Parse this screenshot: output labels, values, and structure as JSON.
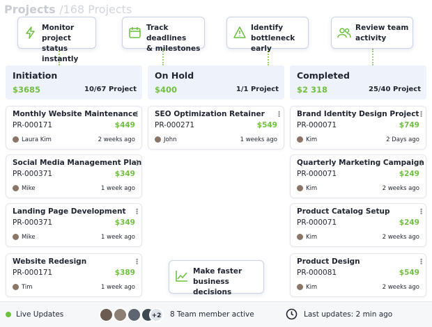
{
  "header": {
    "title": "Projects",
    "count": "/168 Projects"
  },
  "callouts": [
    {
      "lines": [
        "Monitor project",
        "status instantly"
      ]
    },
    {
      "lines": [
        "Track deadlines",
        "& milestones"
      ]
    },
    {
      "lines": [
        "Identify",
        "bottleneck early"
      ]
    },
    {
      "lines": [
        "Review team",
        "activity"
      ]
    },
    {
      "lines": [
        "Make faster",
        "business decisions"
      ]
    }
  ],
  "columns": [
    {
      "title": "Initiation",
      "amount": "$3685",
      "count": "10/67 Project",
      "cards": [
        {
          "title": "Monthly Website Maintenance",
          "id": "PR-000171",
          "price": "$449",
          "user": "Laura Kim",
          "time": "2 weeks ago"
        },
        {
          "title": "Social Media Management Plan",
          "id": "PR-000371",
          "price": "$349",
          "user": "Mike",
          "time": "1 week ago"
        },
        {
          "title": "Landing Page Development",
          "id": "PR-000371",
          "price": "$349",
          "user": "Mike",
          "time": "1 week ago"
        },
        {
          "title": "Website Redesign",
          "id": "PR-000171",
          "price": "$389",
          "user": "Tim",
          "time": "1 week ago"
        }
      ]
    },
    {
      "title": "On Hold",
      "amount": "$400",
      "count": "1/1 Project",
      "cards": [
        {
          "title": "SEO Optimization Retainer",
          "id": "PR-000271",
          "price": "$549",
          "user": "John",
          "time": "1 weeks ago"
        }
      ]
    },
    {
      "title": "Completed",
      "amount": "$2 318",
      "count": "25/40 Project",
      "cards": [
        {
          "title": "Brand Identity Design Project",
          "id": "PR-000071",
          "price": "$749",
          "user": "Kim",
          "time": "2 Days ago"
        },
        {
          "title": "Quarterly Marketing Campaign",
          "id": "PR-000071",
          "price": "$249",
          "user": "Kim",
          "time": "2 weeks ago"
        },
        {
          "title": "Product Catalog Setup",
          "id": "PR-000071",
          "price": "$249",
          "user": "Kim",
          "time": "2 weeks ago"
        },
        {
          "title": "Product Design",
          "id": "PR-000081",
          "price": "$549",
          "user": "Kim",
          "time": "2 weeks ago"
        }
      ]
    }
  ],
  "footer": {
    "live": "Live Updates",
    "more": "+2",
    "team": "8 Team member active",
    "last": "Last updates: 2 min ago"
  }
}
